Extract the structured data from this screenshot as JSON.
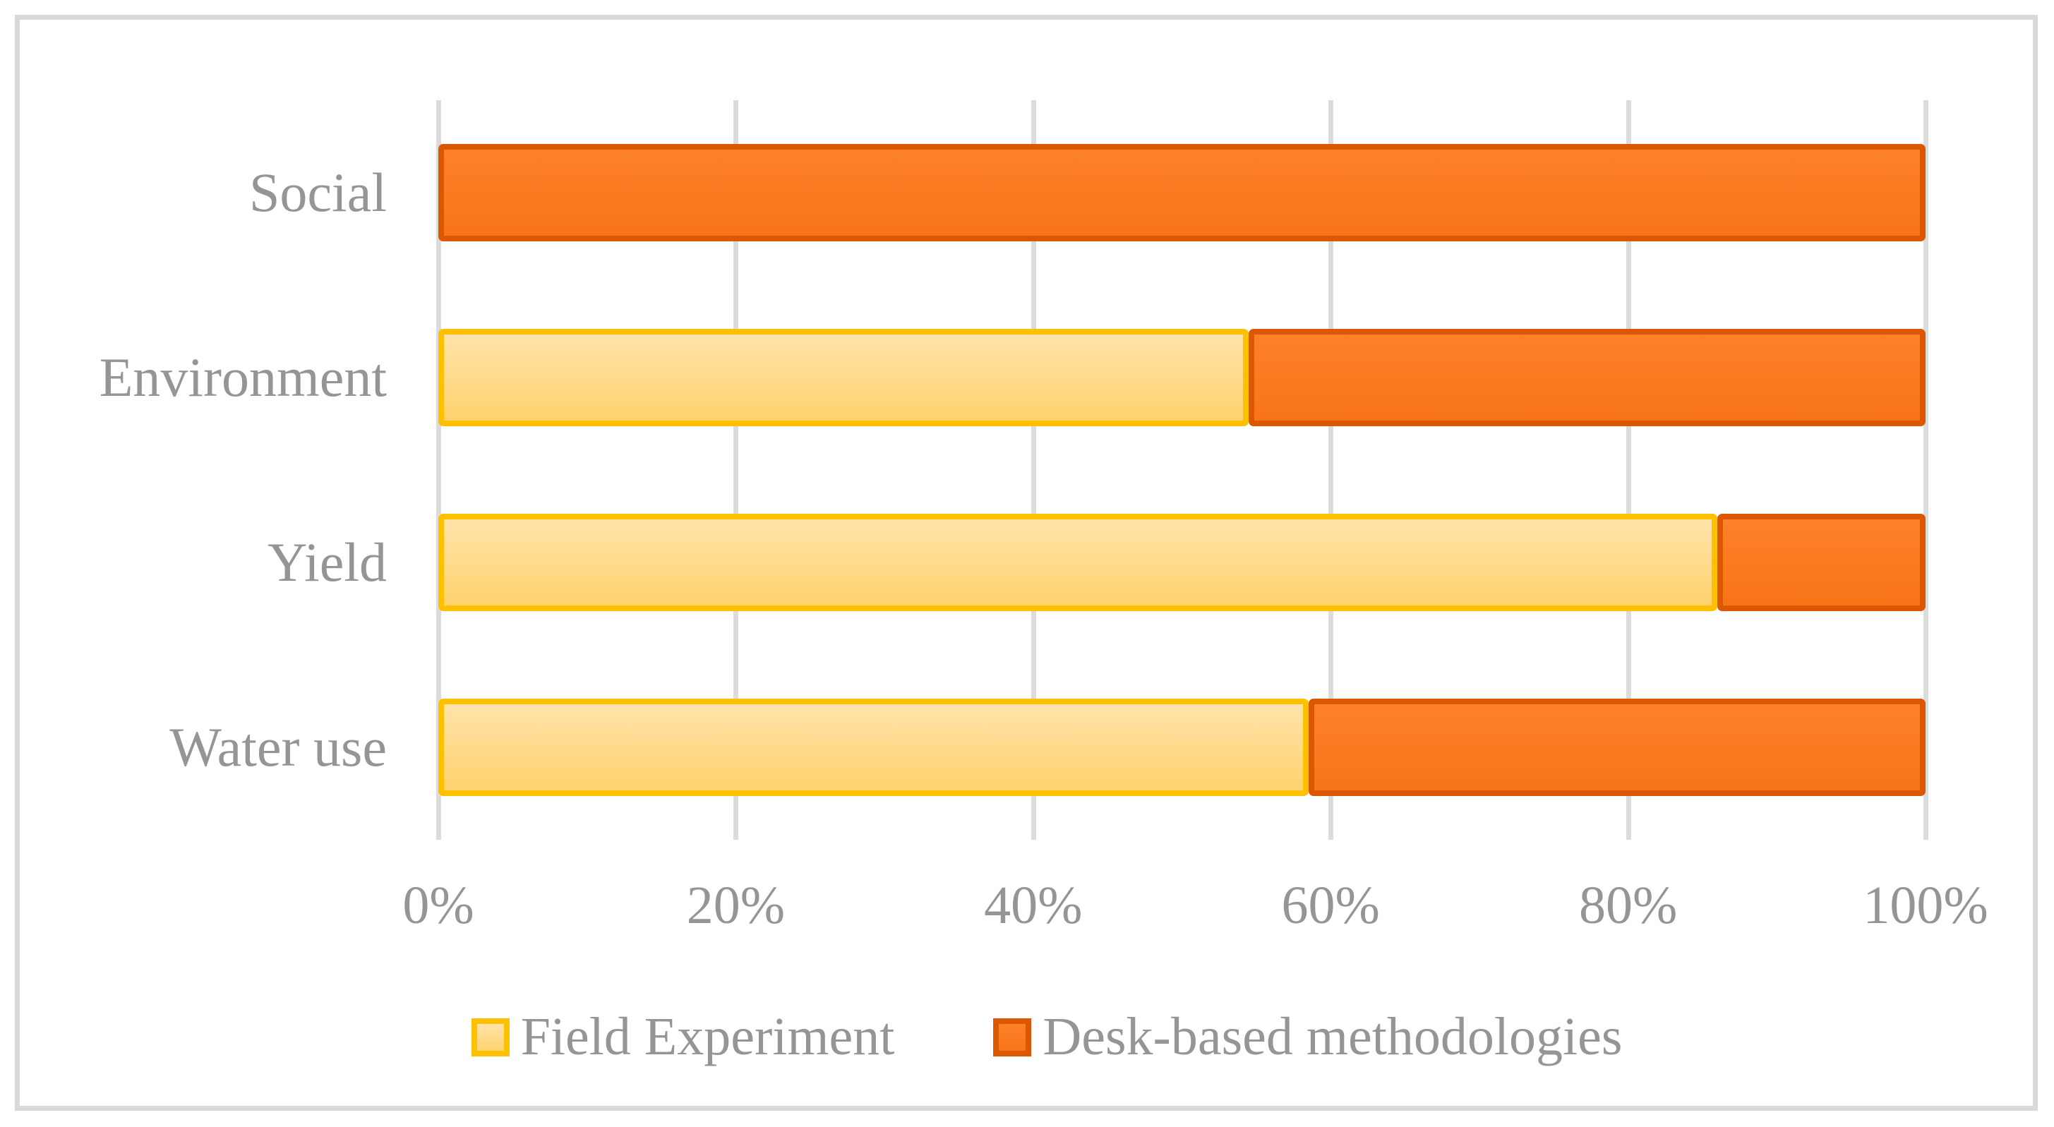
{
  "chart_data": {
    "type": "bar",
    "orientation": "horizontal",
    "stacked": true,
    "unit": "%",
    "title": "",
    "xlabel": "",
    "ylabel": "",
    "categories": [
      "Social",
      "Environment",
      "Yield",
      "Water use"
    ],
    "series": [
      {
        "name": "Field Experiment",
        "values": [
          0,
          54.5,
          86,
          58.5
        ],
        "fill_top": "#FFE3A9",
        "fill_bottom": "#FFD26E",
        "border": "#FFC000"
      },
      {
        "name": "Desk-based methodologies",
        "values": [
          100,
          45.5,
          14,
          41.5
        ],
        "fill_top": "#FD8128",
        "fill_bottom": "#F87419",
        "border": "#DB5702"
      }
    ],
    "x_ticks": [
      {
        "label": "0%",
        "value": 0
      },
      {
        "label": "20%",
        "value": 20
      },
      {
        "label": "40%",
        "value": 40
      },
      {
        "label": "60%",
        "value": 60
      },
      {
        "label": "80%",
        "value": 80
      },
      {
        "label": "100%",
        "value": 100
      }
    ],
    "xlim": [
      0,
      100
    ],
    "grid": true,
    "legend_position": "bottom"
  },
  "colors": {
    "background": "#FFFFFF",
    "frame_border": "#D9D9D9",
    "gridline": "#DCDCDC",
    "text": "#959595"
  }
}
